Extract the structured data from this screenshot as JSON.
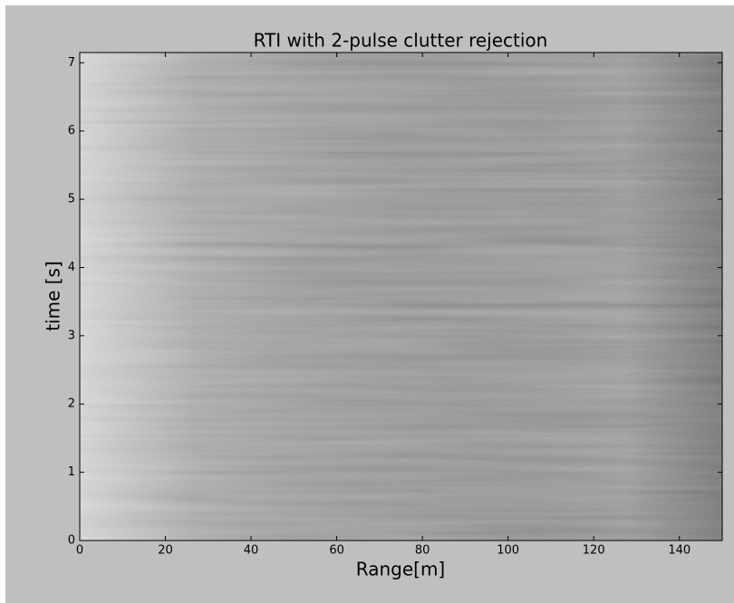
{
  "chart_data": {
    "type": "image",
    "title": "RTI with 2-pulse clutter rejection",
    "xlabel": "Range[m]",
    "ylabel": "time [s]",
    "xlim": [
      0,
      150
    ],
    "ylim": [
      0,
      7.15
    ],
    "xticks": [
      0,
      20,
      40,
      60,
      80,
      100,
      120,
      140
    ],
    "yticks": [
      0,
      1,
      2,
      3,
      4,
      5,
      6,
      7
    ],
    "colormap": "gray"
  }
}
